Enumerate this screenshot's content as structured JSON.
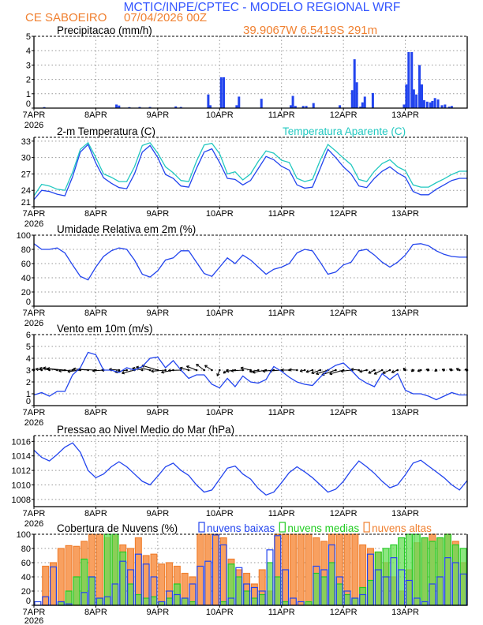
{
  "header": {
    "title": "MCTIC/INPE/CPTEC - MODELO REGIONAL WRF",
    "station": "CE SABOEIRO",
    "run": "07/04/2026 00Z",
    "location": "39.9067W 6.5419S 291m"
  },
  "colors": {
    "title": "#3355ff",
    "orange": "#f08030",
    "blue": "#2244ee",
    "cyan": "#22c8c0",
    "green": "#22cc22",
    "orange_fill": "#f8a060"
  },
  "x_axis": {
    "ticks": [
      "7APR",
      "8APR",
      "9APR",
      "10APR",
      "11APR",
      "12APR",
      "13APR"
    ],
    "year": "2026",
    "range_hours": [
      0,
      168
    ]
  },
  "chart_data": [
    {
      "type": "bar",
      "title": "Precipitacao (mm/h)",
      "ylim": [
        0,
        5
      ],
      "yticks": [
        0,
        1,
        2,
        3,
        4,
        5
      ],
      "grid": true,
      "bars_hour_value": [
        [
          4,
          0.07
        ],
        [
          32,
          0.25
        ],
        [
          33,
          0.18
        ],
        [
          37,
          0.07
        ],
        [
          41,
          0.08
        ],
        [
          45,
          0.08
        ],
        [
          55,
          0.12
        ],
        [
          57,
          0.08
        ],
        [
          67.6,
          0.95
        ],
        [
          68.4,
          0.2
        ],
        [
          72.6,
          2.15
        ],
        [
          73.6,
          2.15
        ],
        [
          78.6,
          0.2
        ],
        [
          79.5,
          0.8
        ],
        [
          88.2,
          0.65
        ],
        [
          99.6,
          0.2
        ],
        [
          100.4,
          0.85
        ],
        [
          101.4,
          0.15
        ],
        [
          104.4,
          0.15
        ],
        [
          105.6,
          0.15
        ],
        [
          108.4,
          0.35
        ],
        [
          118.6,
          0.2
        ],
        [
          123.4,
          1.25
        ],
        [
          124.3,
          3.4
        ],
        [
          125.2,
          1.8
        ],
        [
          126.6,
          0.1
        ],
        [
          127.4,
          0.4
        ],
        [
          128.3,
          0.8
        ],
        [
          131.4,
          1.05
        ],
        [
          143.5,
          0.25
        ],
        [
          144.4,
          1.65
        ],
        [
          145.3,
          3.9
        ],
        [
          146.5,
          3.9
        ],
        [
          147.3,
          1.3
        ],
        [
          148.3,
          0.95
        ],
        [
          149.5,
          3.0
        ],
        [
          150.4,
          1.65
        ],
        [
          151.3,
          0.55
        ],
        [
          152.5,
          0.45
        ],
        [
          153.7,
          0.4
        ],
        [
          154.5,
          0.5
        ],
        [
          155.5,
          0.7
        ],
        [
          156.7,
          0.6
        ],
        [
          158.2,
          0.2
        ],
        [
          159.4,
          0.25
        ],
        [
          161,
          0.1
        ],
        [
          162,
          0.15
        ]
      ]
    },
    {
      "type": "line",
      "title": "2-m Temperatura (C)",
      "ylim": [
        21,
        33.7
      ],
      "yticks": [
        21,
        24,
        27,
        30,
        33
      ],
      "grid": true,
      "x_step_hours": 3,
      "series": [
        {
          "name": "2-m Temperatura (C)",
          "color": "#2244ee",
          "values": [
            22.3,
            24.0,
            23.8,
            23.3,
            23.0,
            26.5,
            31.0,
            32.4,
            29.0,
            26.3,
            25.3,
            24.5,
            24.3,
            27.0,
            31.0,
            32.2,
            30.0,
            26.9,
            26.2,
            24.8,
            24.6,
            28.0,
            31.0,
            31.6,
            29.1,
            26.2,
            26.0,
            25.0,
            25.8,
            28.0,
            30.2,
            29.6,
            28.4,
            27.7,
            25.0,
            24.4,
            24.6,
            28.0,
            31.5,
            30.0,
            28.3,
            27.0,
            24.8,
            24.5,
            26.2,
            27.5,
            28.3,
            27.2,
            26.4,
            23.8,
            23.2,
            23.2,
            24.2,
            25.0,
            25.8,
            26.2,
            26.2
          ]
        },
        {
          "name": "Temperatura Aparente (C)",
          "color": "#22c8c0",
          "values": [
            23.0,
            25.1,
            24.8,
            24.2,
            24.0,
            27.3,
            31.5,
            32.7,
            30.0,
            27.0,
            26.4,
            25.6,
            25.6,
            28.3,
            32.2,
            32.7,
            30.8,
            28.3,
            27.2,
            25.8,
            25.6,
            29.3,
            32.3,
            32.6,
            30.7,
            27.0,
            27.4,
            25.9,
            27.0,
            29.3,
            31.2,
            30.8,
            29.5,
            29.1,
            26.2,
            25.6,
            26.0,
            29.5,
            32.4,
            31.2,
            29.9,
            28.7,
            26.0,
            25.6,
            27.5,
            28.9,
            29.6,
            28.3,
            27.6,
            25.0,
            24.6,
            24.6,
            25.4,
            26.1,
            26.9,
            27.5,
            27.5
          ]
        }
      ]
    },
    {
      "type": "line",
      "title": "Umidade Relativa em 2m (%)",
      "ylim": [
        0,
        100
      ],
      "yticks": [
        0,
        20,
        40,
        60,
        80,
        100
      ],
      "grid": true,
      "x_step_hours": 3,
      "series": [
        {
          "color": "#2244ee",
          "values": [
            88,
            80,
            80,
            82,
            75,
            58,
            42,
            37,
            55,
            70,
            78,
            82,
            80,
            65,
            45,
            41,
            50,
            65,
            68,
            78,
            78,
            62,
            46,
            42,
            55,
            68,
            60,
            72,
            65,
            55,
            45,
            52,
            55,
            60,
            75,
            80,
            78,
            62,
            45,
            48,
            58,
            62,
            78,
            80,
            72,
            62,
            55,
            62,
            72,
            87,
            88,
            85,
            78,
            73,
            70,
            69,
            69
          ]
        }
      ]
    },
    {
      "type": "line",
      "title": "Vento em 10m (m/s)",
      "ylim": [
        0,
        6
      ],
      "yticks": [
        0,
        1,
        2,
        3,
        4,
        5,
        6
      ],
      "grid": true,
      "x_step_hours": 3,
      "series": [
        {
          "color": "#2244ee",
          "values": [
            0.9,
            1.1,
            0.8,
            1.2,
            1.2,
            2.6,
            3.2,
            4.5,
            4.3,
            3.0,
            3.0,
            2.8,
            3.2,
            3.0,
            3.3,
            4.0,
            4.1,
            3.2,
            3.8,
            3.0,
            2.3,
            2.6,
            2.6,
            1.8,
            1.5,
            2.3,
            1.6,
            2.5,
            2.0,
            1.9,
            2.2,
            3.3,
            2.9,
            2.4,
            2.0,
            1.8,
            1.7,
            2.4,
            3.0,
            3.4,
            3.6,
            3.0,
            2.3,
            1.9,
            1.6,
            2.7,
            2.2,
            2.7,
            1.3,
            1.0,
            1.0,
            0.8,
            0.5,
            0.8,
            1.1,
            0.9,
            0.9
          ]
        }
      ],
      "vectors_u": [
        -0.4,
        -1.5,
        -2.5,
        -3.5,
        -4.5,
        -3.5,
        -3.2,
        -3.8,
        -4.5,
        -2.8,
        -2.5,
        -2.5,
        -3.0,
        -3.2,
        -2.5,
        -3.5,
        -4.0,
        -3.6,
        -3.0,
        -3.2,
        -2.2,
        -2.5,
        -2.0,
        -1.8,
        -0.6,
        -1.0,
        -2.2,
        -3.0,
        -2.5,
        -2.2,
        -3.4,
        -2.8,
        -3.0,
        -2.0,
        -2.0,
        -1.2,
        -1.6,
        -2.2,
        -3.0,
        -3.5,
        -3.5,
        -2.6,
        -2.0,
        -1.8,
        -1.5,
        -2.0,
        -1.8,
        -1.5,
        -0.5,
        -0.4,
        -0.8,
        -0.6,
        -0.4,
        -0.5,
        -0.6,
        -0.8,
        -0.6
      ],
      "vectors_v": [
        0.2,
        0.3,
        0.5,
        0.6,
        0.4,
        -0.2,
        -0.4,
        0.3,
        0.2,
        -0.2,
        0.0,
        0.2,
        -0.5,
        -0.8,
        0.5,
        0.8,
        1.2,
        -0.3,
        -0.6,
        -0.1,
        0.6,
        1.0,
        1.5,
        1.2,
        -1.5,
        -0.8,
        -0.3,
        -0.2,
        0.6,
        -0.4,
        -0.6,
        -0.3,
        -0.2,
        0.0,
        0.1,
        -0.3,
        -0.5,
        -0.8,
        -1.0,
        -1.2,
        -1.0,
        -0.3,
        0.2,
        -0.4,
        -0.8,
        -1.0,
        -0.8,
        -0.6,
        0.5,
        -0.4,
        -0.3,
        0.2,
        -0.3,
        0.2,
        0.3,
        0.4,
        0.2
      ]
    },
    {
      "type": "line",
      "title": "Pressao ao Nivel Medio do Mar (hPa)",
      "ylim": [
        1007,
        1016.8
      ],
      "yticks": [
        1008,
        1010,
        1012,
        1014,
        1016
      ],
      "grid": true,
      "x_step_hours": 3,
      "series": [
        {
          "color": "#2244ee",
          "values": [
            1014.8,
            1013.8,
            1013.3,
            1014.2,
            1015.2,
            1015.8,
            1014.5,
            1012.0,
            1011.0,
            1011.5,
            1012.5,
            1013.2,
            1012.5,
            1011.5,
            1010.5,
            1010.0,
            1011.2,
            1012.5,
            1013.0,
            1012.0,
            1011.3,
            1010.0,
            1009.0,
            1009.3,
            1010.8,
            1012.3,
            1012.6,
            1011.5,
            1010.8,
            1009.5,
            1008.6,
            1009.0,
            1010.3,
            1011.7,
            1012.5,
            1011.8,
            1011.0,
            1010.0,
            1009.0,
            1009.4,
            1010.5,
            1012.0,
            1013.3,
            1012.5,
            1011.6,
            1010.5,
            1009.6,
            1010.0,
            1011.4,
            1013.0,
            1013.4,
            1012.6,
            1011.8,
            1011.0,
            1010.0,
            1009.3,
            1010.6
          ]
        }
      ]
    },
    {
      "type": "bar",
      "title": "Cobertura de Nuvens (%)",
      "ylim": [
        0,
        100
      ],
      "yticks": [
        0,
        20,
        40,
        60,
        80,
        100
      ],
      "grid": true,
      "legend_placement": "top",
      "x_step_hours": 3,
      "series": [
        {
          "name": "nuvens altas",
          "color": "#f08030",
          "values": [
            0,
            55,
            60,
            80,
            84,
            83,
            90,
            100,
            100,
            95,
            98,
            85,
            80,
            95,
            70,
            72,
            58,
            60,
            55,
            45,
            40,
            100,
            100,
            100,
            95,
            65,
            50,
            45,
            30,
            50,
            20,
            100,
            100,
            100,
            100,
            100,
            95,
            90,
            100,
            100,
            100,
            100,
            85,
            80,
            75,
            60,
            40,
            20,
            50,
            88,
            95,
            100,
            95,
            100,
            90,
            60
          ]
        },
        {
          "name": "nuvens medias",
          "color": "#22cc22",
          "values": [
            0,
            0,
            0,
            5,
            20,
            40,
            65,
            40,
            10,
            100,
            100,
            75,
            30,
            15,
            10,
            12,
            5,
            10,
            30,
            10,
            5,
            0,
            0,
            0,
            5,
            58,
            40,
            20,
            10,
            15,
            60,
            40,
            5,
            0,
            0,
            5,
            45,
            40,
            60,
            30,
            15,
            10,
            25,
            35,
            75,
            80,
            85,
            95,
            100,
            100,
            95,
            90,
            95,
            100,
            85,
            80
          ]
        },
        {
          "name": "nuvens baixas",
          "color": "#2244ee",
          "values": [
            5,
            12,
            54,
            5,
            2,
            0,
            18,
            40,
            10,
            12,
            30,
            62,
            50,
            72,
            58,
            40,
            5,
            20,
            15,
            10,
            30,
            55,
            62,
            99,
            85,
            10,
            53,
            30,
            25,
            20,
            78,
            98,
            50,
            10,
            5,
            0,
            55,
            50,
            85,
            40,
            20,
            10,
            15,
            72,
            50,
            40,
            67,
            50,
            35,
            10,
            5,
            30,
            40,
            67,
            60,
            44
          ]
        }
      ]
    }
  ]
}
